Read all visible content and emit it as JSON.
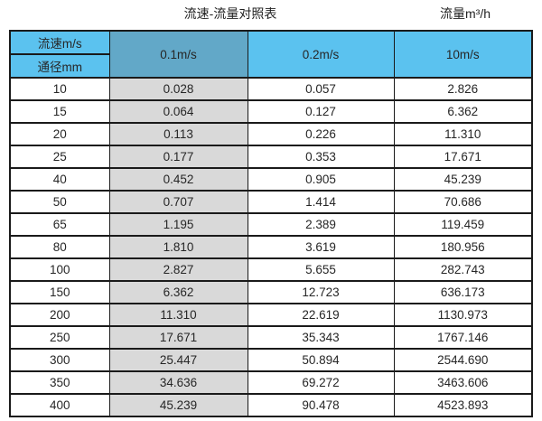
{
  "page": {
    "title": "流速-流量对照表",
    "unit_label": "流量m³/h"
  },
  "colors": {
    "header_light_blue": "#5BC2EF",
    "header_dark_blue": "#62A8C8",
    "highlight_column_gray": "#D9D9D9",
    "grid_border": "#1a1a1a"
  },
  "table": {
    "header": {
      "velocity_label": "流速m/s",
      "diameter_label": "通径mm",
      "columns": [
        "0.1m/s",
        "0.2m/s",
        "10m/s"
      ]
    },
    "rows": [
      {
        "dn": "10",
        "values": [
          "0.028",
          "0.057",
          "2.826"
        ]
      },
      {
        "dn": "15",
        "values": [
          "0.064",
          "0.127",
          "6.362"
        ]
      },
      {
        "dn": "20",
        "values": [
          "0.113",
          "0.226",
          "11.310"
        ]
      },
      {
        "dn": "25",
        "values": [
          "0.177",
          "0.353",
          "17.671"
        ]
      },
      {
        "dn": "40",
        "values": [
          "0.452",
          "0.905",
          "45.239"
        ]
      },
      {
        "dn": "50",
        "values": [
          "0.707",
          "1.414",
          "70.686"
        ]
      },
      {
        "dn": "65",
        "values": [
          "1.195",
          "2.389",
          "119.459"
        ]
      },
      {
        "dn": "80",
        "values": [
          "1.810",
          "3.619",
          "180.956"
        ]
      },
      {
        "dn": "100",
        "values": [
          "2.827",
          "5.655",
          "282.743"
        ]
      },
      {
        "dn": "150",
        "values": [
          "6.362",
          "12.723",
          "636.173"
        ]
      },
      {
        "dn": "200",
        "values": [
          "11.310",
          "22.619",
          "1130.973"
        ]
      },
      {
        "dn": "250",
        "values": [
          "17.671",
          "35.343",
          "1767.146"
        ]
      },
      {
        "dn": "300",
        "values": [
          "25.447",
          "50.894",
          "2544.690"
        ]
      },
      {
        "dn": "350",
        "values": [
          "34.636",
          "69.272",
          "3463.606"
        ]
      },
      {
        "dn": "400",
        "values": [
          "45.239",
          "90.478",
          "4523.893"
        ]
      }
    ]
  },
  "chart_data": {
    "type": "table",
    "title": "流速-流量对照表",
    "unit": "流量m³/h",
    "columns": [
      "通径mm",
      "0.1m/s",
      "0.2m/s",
      "10m/s"
    ],
    "rows": [
      [
        10,
        0.028,
        0.057,
        2.826
      ],
      [
        15,
        0.064,
        0.127,
        6.362
      ],
      [
        20,
        0.113,
        0.226,
        11.31
      ],
      [
        25,
        0.177,
        0.353,
        17.671
      ],
      [
        40,
        0.452,
        0.905,
        45.239
      ],
      [
        50,
        0.707,
        1.414,
        70.686
      ],
      [
        65,
        1.195,
        2.389,
        119.459
      ],
      [
        80,
        1.81,
        3.619,
        180.956
      ],
      [
        100,
        2.827,
        5.655,
        282.743
      ],
      [
        150,
        6.362,
        12.723,
        636.173
      ],
      [
        200,
        11.31,
        22.619,
        1130.973
      ],
      [
        250,
        17.671,
        35.343,
        1767.146
      ],
      [
        300,
        25.447,
        50.894,
        2544.69
      ],
      [
        350,
        34.636,
        69.272,
        3463.606
      ],
      [
        400,
        45.239,
        90.478,
        4523.893
      ]
    ]
  }
}
